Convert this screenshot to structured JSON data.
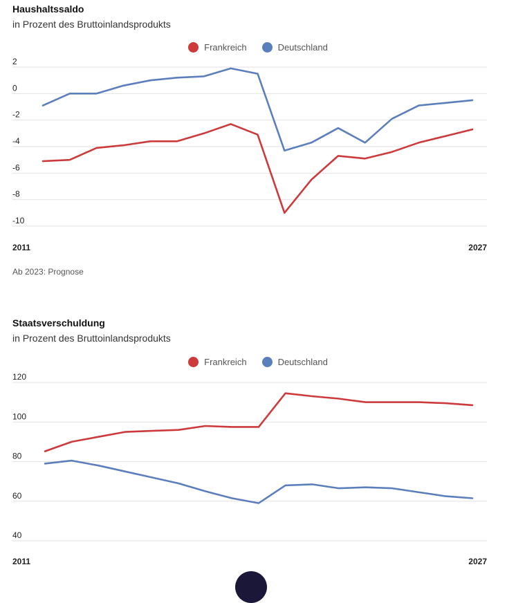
{
  "colors": {
    "frankreich": "#cc3a3c",
    "deutschland": "#5b7fbd",
    "grid": "#e2e2e2"
  },
  "chart_data": [
    {
      "type": "line",
      "title": "Haushaltssaldo",
      "subtitle": "in Prozent des Bruttoinlandsprodukts",
      "legend": [
        "Frankreich",
        "Deutschland"
      ],
      "legend_position": "top-center",
      "x": [
        2011,
        2012,
        2013,
        2014,
        2015,
        2016,
        2017,
        2018,
        2019,
        2020,
        2021,
        2022,
        2023,
        2024,
        2025,
        2026,
        2027
      ],
      "x_tick_labels": [
        "2011",
        "2027"
      ],
      "y_tick_labels": [
        "2",
        "0",
        "-2",
        "-4",
        "-6",
        "-8",
        "-10"
      ],
      "ylim": [
        -10,
        2
      ],
      "grid": true,
      "series": [
        {
          "name": "Frankreich",
          "values": [
            -5.1,
            -5.0,
            -4.1,
            -3.9,
            -3.6,
            -3.6,
            -3.0,
            -2.3,
            -3.1,
            -9.0,
            -6.5,
            -4.7,
            -4.9,
            -4.4,
            -3.7,
            -3.2,
            -2.7
          ]
        },
        {
          "name": "Deutschland",
          "values": [
            -0.9,
            0.0,
            0.0,
            0.6,
            1.0,
            1.2,
            1.3,
            1.9,
            1.5,
            -4.3,
            -3.7,
            -2.6,
            -3.7,
            -1.9,
            -0.9,
            -0.7,
            -0.5
          ]
        }
      ],
      "note": "Ab 2023: Prognose"
    },
    {
      "type": "line",
      "title": "Staatsverschuldung",
      "subtitle": "in Prozent des Bruttoinlandsprodukts",
      "legend": [
        "Frankreich",
        "Deutschland"
      ],
      "legend_position": "top-center",
      "x": [
        2011,
        2012,
        2013,
        2014,
        2015,
        2016,
        2017,
        2018,
        2019,
        2020,
        2021,
        2022,
        2023,
        2024,
        2025,
        2026,
        2027
      ],
      "x_tick_labels": [
        "2011",
        "2027"
      ],
      "y_tick_labels": [
        "120",
        "100",
        "80",
        "60",
        "40"
      ],
      "ylim": [
        40,
        120
      ],
      "grid": true,
      "series": [
        {
          "name": "Frankreich",
          "values": [
            85.2,
            90.0,
            92.5,
            95.0,
            95.5,
            96.0,
            98.0,
            97.5,
            97.5,
            114.5,
            113.0,
            111.8,
            110.0,
            110.0,
            110.0,
            109.5,
            108.5
          ]
        },
        {
          "name": "Deutschland",
          "values": [
            79.0,
            80.5,
            78.0,
            75.0,
            72.0,
            69.0,
            65.0,
            61.5,
            59.0,
            68.0,
            68.5,
            66.5,
            67.0,
            66.5,
            64.5,
            62.5,
            61.5
          ]
        }
      ]
    }
  ]
}
